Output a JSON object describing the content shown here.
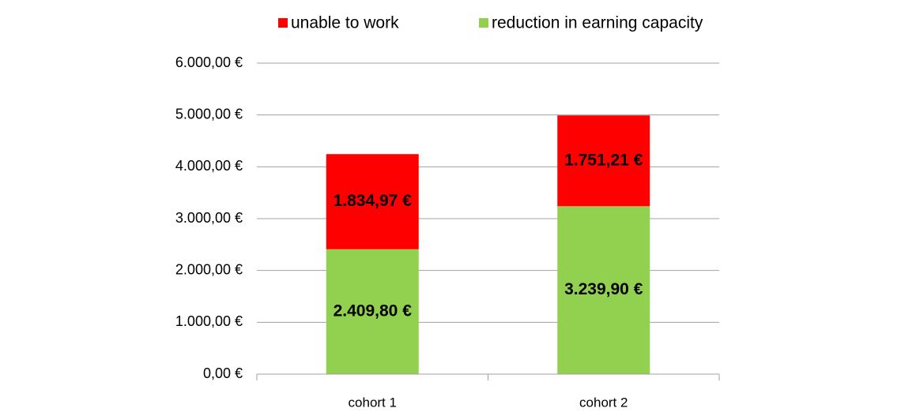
{
  "chart_data": {
    "type": "stacked_bar",
    "categories": [
      "cohort 1",
      "cohort 2"
    ],
    "series": [
      {
        "name": "unable to work",
        "color": "#ff0000",
        "values": [
          1834.97,
          1751.21
        ],
        "value_labels": [
          "1.834,97 €",
          "1.751,21 €"
        ]
      },
      {
        "name": "reduction in earning capacity",
        "color": "#92d050",
        "values": [
          2409.8,
          3239.9
        ],
        "value_labels": [
          "2.409,80 €",
          "3.239,90 €"
        ]
      }
    ],
    "ylim": [
      0,
      6000
    ],
    "yticks": [
      {
        "value": 0,
        "label": "0,00 €"
      },
      {
        "value": 1000,
        "label": "1.000,00 €"
      },
      {
        "value": 2000,
        "label": "2.000,00 €"
      },
      {
        "value": 3000,
        "label": "3.000,00 €"
      },
      {
        "value": 4000,
        "label": "4.000,00 €"
      },
      {
        "value": 5000,
        "label": "5.000,00 €"
      },
      {
        "value": 6000,
        "label": "6.000,00 €"
      }
    ],
    "grid": true,
    "legend": "top"
  }
}
